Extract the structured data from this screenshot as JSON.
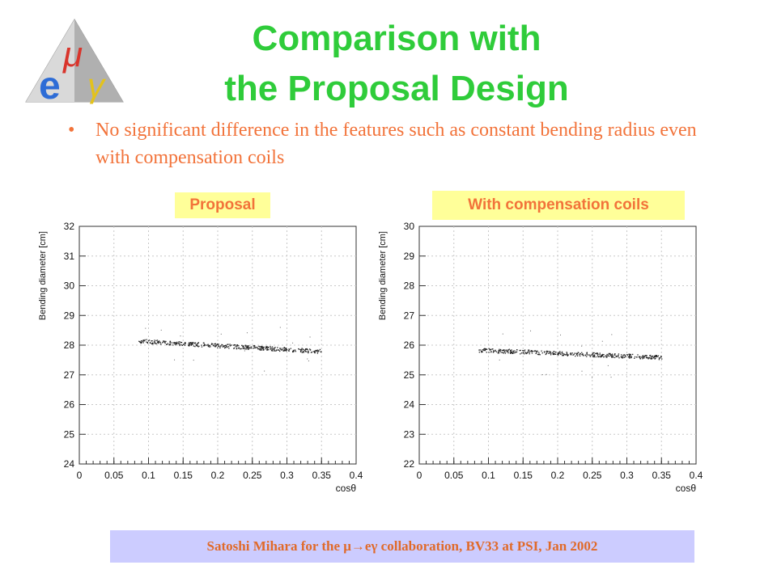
{
  "slide": {
    "title_line1": "Comparison with",
    "title_line2": "the Proposal Design",
    "bullet": "No significant difference in the features such as constant bending radius even with compensation coils",
    "footer": "Satoshi Mihara for the μ→eγ collaboration, BV33 at PSI, Jan 2002",
    "logo": {
      "icon": "mu-e-gamma-pyramid-logo",
      "letters": [
        "μ",
        "e",
        "γ"
      ]
    },
    "colors": {
      "title": "#2fcc3a",
      "bullet": "#f2733a",
      "label_bg": "#ffff99",
      "footer_bg": "#ccccff"
    }
  },
  "chart_data": [
    {
      "type": "scatter",
      "label": "Proposal",
      "xlabel": "cosθ",
      "ylabel": "Bending diameter [cm]",
      "xlim": [
        0,
        0.4
      ],
      "ylim": [
        24,
        32
      ],
      "xticks": [
        "0",
        "0.05",
        "0.1",
        "0.15",
        "0.2",
        "0.25",
        "0.3",
        "0.35",
        "0.4"
      ],
      "yticks": [
        "24",
        "25",
        "26",
        "27",
        "28",
        "29",
        "30",
        "31",
        "32"
      ],
      "grid": true,
      "trend": {
        "x": [
          0.085,
          0.35
        ],
        "y": [
          28.15,
          27.8
        ]
      }
    },
    {
      "type": "scatter",
      "label": "With compensation coils",
      "xlabel": "cosθ",
      "ylabel": "Bending diameter [cm]",
      "xlim": [
        0,
        0.4
      ],
      "ylim": [
        22,
        30
      ],
      "xticks": [
        "0",
        "0.05",
        "0.1",
        "0.15",
        "0.2",
        "0.25",
        "0.3",
        "0.35",
        "0.4"
      ],
      "yticks": [
        "22",
        "23",
        "24",
        "25",
        "26",
        "27",
        "28",
        "29",
        "30"
      ],
      "grid": true,
      "trend": {
        "x": [
          0.085,
          0.35
        ],
        "y": [
          25.85,
          25.6
        ]
      }
    }
  ]
}
